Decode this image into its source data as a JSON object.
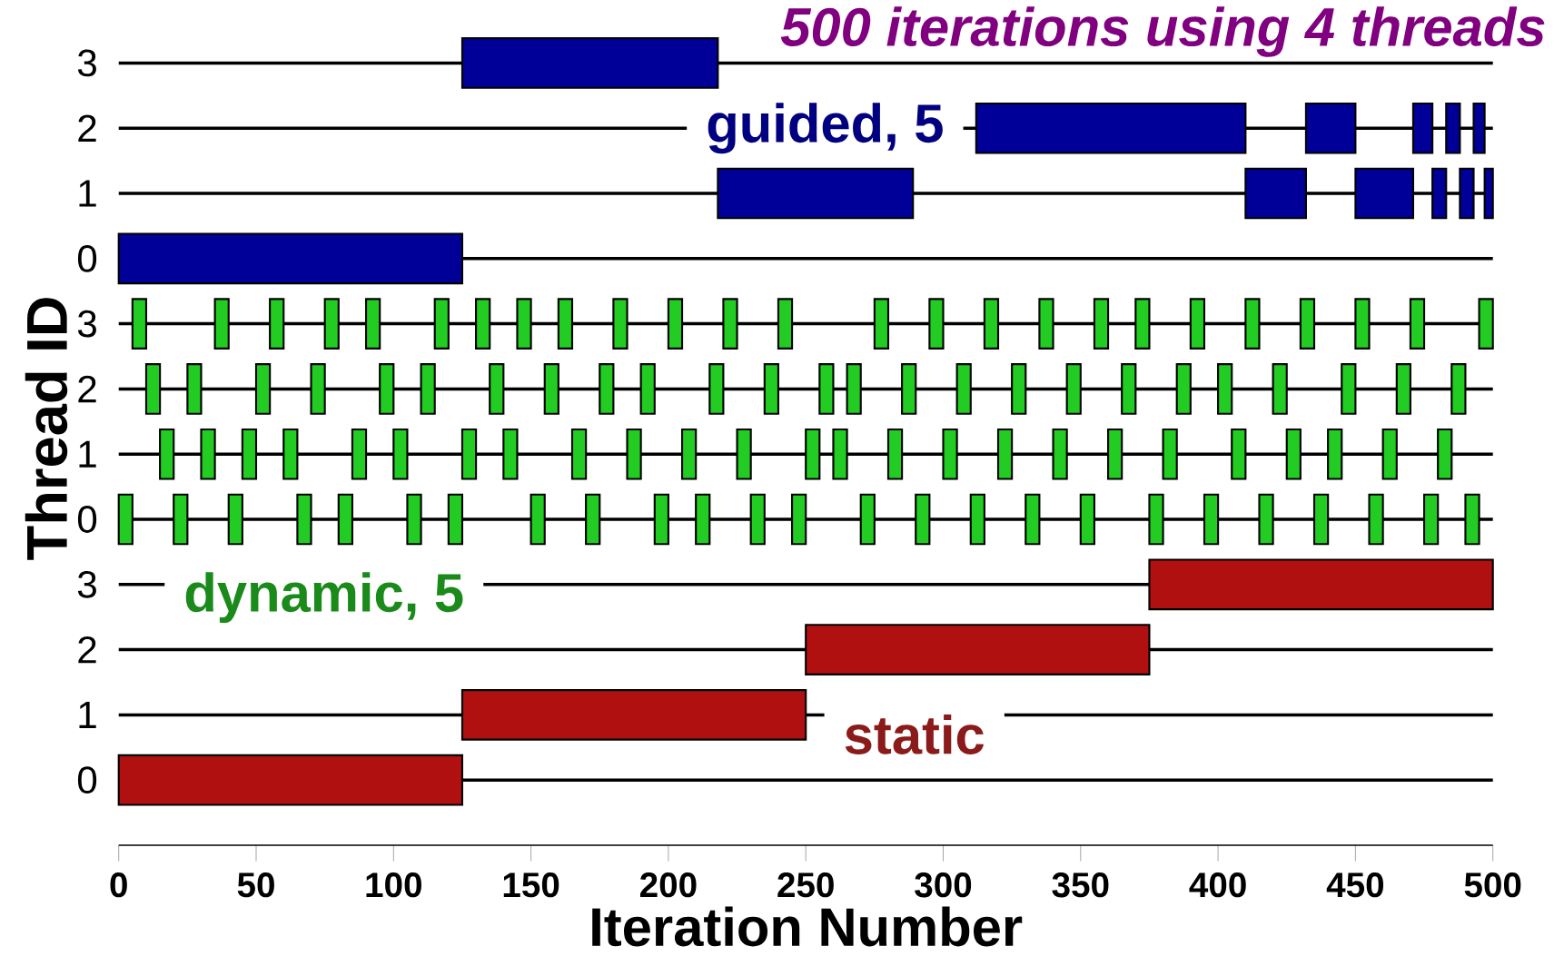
{
  "chart_data": {
    "type": "bar",
    "orientation": "horizontal",
    "title": "500 iterations using 4 threads",
    "xlabel": "Iteration Number",
    "ylabel": "Thread ID",
    "categories": [
      "3",
      "2",
      "1",
      "0",
      "3",
      "2",
      "1",
      "0",
      "3",
      "2",
      "1",
      "0"
    ],
    "xlim": [
      0,
      500
    ],
    "xticks": [
      0,
      50,
      100,
      150,
      200,
      250,
      300,
      350,
      400,
      450,
      500
    ],
    "grid": "y",
    "annotations": [
      "guided, 5",
      "dynamic, 5",
      "static"
    ],
    "series": [
      {
        "color": "#000099",
        "values": [
          93,
          98,
          71,
          125,
          null,
          null,
          null,
          null,
          null,
          null,
          null,
          null
        ],
        "base": [
          125,
          312,
          218,
          0,
          null,
          null,
          null,
          null,
          null,
          null,
          null,
          null
        ]
      },
      {
        "color": "#000099",
        "values": [
          null,
          18,
          22,
          null,
          null,
          null,
          null,
          null,
          null,
          null,
          null,
          null
        ],
        "base": [
          null,
          432,
          410,
          null,
          null,
          null,
          null,
          null,
          null,
          null,
          null,
          null
        ]
      },
      {
        "color": "#000099",
        "values": [
          null,
          7,
          21,
          null,
          null,
          null,
          null,
          null,
          null,
          null,
          null,
          null
        ],
        "base": [
          null,
          471,
          450,
          null,
          null,
          null,
          null,
          null,
          null,
          null,
          null,
          null
        ]
      },
      {
        "color": "#000099",
        "values": [
          null,
          5,
          5,
          null,
          null,
          null,
          null,
          null,
          null,
          null,
          null,
          null
        ],
        "base": [
          null,
          483,
          478,
          null,
          null,
          null,
          null,
          null,
          null,
          null,
          null,
          null
        ]
      },
      {
        "color": "#000099",
        "values": [
          null,
          4,
          5,
          null,
          null,
          null,
          null,
          null,
          null,
          null,
          null,
          null
        ],
        "base": [
          null,
          493,
          488,
          null,
          null,
          null,
          null,
          null,
          null,
          null,
          null,
          null
        ]
      },
      {
        "color": "#000099",
        "values": [
          null,
          null,
          3,
          null,
          null,
          null,
          null,
          null,
          null,
          null,
          null,
          null
        ],
        "base": [
          null,
          null,
          497,
          null,
          null,
          null,
          null,
          null,
          null,
          null,
          null,
          null
        ]
      },
      {
        "color": "#22cc22",
        "values": [
          null,
          null,
          null,
          null,
          5,
          5,
          5,
          5,
          null,
          null,
          null,
          null
        ],
        "base": [
          null,
          null,
          null,
          null,
          5,
          10,
          15,
          0,
          null,
          null,
          null,
          null
        ]
      },
      {
        "color": "#22cc22",
        "values": [
          null,
          null,
          null,
          null,
          5,
          5,
          5,
          5,
          null,
          null,
          null,
          null
        ],
        "base": [
          null,
          null,
          null,
          null,
          35,
          25,
          30,
          20,
          null,
          null,
          null,
          null
        ]
      },
      {
        "color": "#22cc22",
        "values": [
          null,
          null,
          null,
          null,
          5,
          5,
          5,
          5,
          null,
          null,
          null,
          null
        ],
        "base": [
          null,
          null,
          null,
          null,
          55,
          50,
          45,
          40,
          null,
          null,
          null,
          null
        ]
      },
      {
        "color": "#22cc22",
        "values": [
          null,
          null,
          null,
          null,
          5,
          5,
          5,
          5,
          null,
          null,
          null,
          null
        ],
        "base": [
          null,
          null,
          null,
          null,
          75,
          70,
          60,
          65,
          null,
          null,
          null,
          null
        ]
      },
      {
        "color": "#22cc22",
        "values": [
          null,
          null,
          null,
          null,
          5,
          5,
          5,
          5,
          null,
          null,
          null,
          null
        ],
        "base": [
          null,
          null,
          null,
          null,
          90,
          95,
          85,
          80,
          null,
          null,
          null,
          null
        ]
      },
      {
        "color": "#22cc22",
        "values": [
          null,
          null,
          null,
          null,
          5,
          5,
          5,
          5,
          null,
          null,
          null,
          null
        ],
        "base": [
          null,
          null,
          null,
          null,
          115,
          110,
          100,
          105,
          null,
          null,
          null,
          null
        ]
      },
      {
        "color": "#22cc22",
        "values": [
          null,
          null,
          null,
          null,
          5,
          5,
          5,
          5,
          null,
          null,
          null,
          null
        ],
        "base": [
          null,
          null,
          null,
          null,
          130,
          135,
          125,
          120,
          null,
          null,
          null,
          null
        ]
      },
      {
        "color": "#22cc22",
        "values": [
          null,
          null,
          null,
          null,
          5,
          5,
          5,
          5,
          null,
          null,
          null,
          null
        ],
        "base": [
          null,
          null,
          null,
          null,
          145,
          155,
          140,
          150,
          null,
          null,
          null,
          null
        ]
      },
      {
        "color": "#22cc22",
        "values": [
          null,
          null,
          null,
          null,
          5,
          5,
          5,
          5,
          null,
          null,
          null,
          null
        ],
        "base": [
          null,
          null,
          null,
          null,
          160,
          175,
          165,
          170,
          null,
          null,
          null,
          null
        ]
      },
      {
        "color": "#22cc22",
        "values": [
          null,
          null,
          null,
          null,
          5,
          5,
          5,
          5,
          null,
          null,
          null,
          null
        ],
        "base": [
          null,
          null,
          null,
          null,
          180,
          190,
          185,
          195,
          null,
          null,
          null,
          null
        ]
      },
      {
        "color": "#22cc22",
        "values": [
          null,
          null,
          null,
          null,
          5,
          5,
          5,
          5,
          null,
          null,
          null,
          null
        ],
        "base": [
          null,
          null,
          null,
          null,
          200,
          215,
          205,
          210,
          null,
          null,
          null,
          null
        ]
      },
      {
        "color": "#22cc22",
        "values": [
          null,
          null,
          null,
          null,
          5,
          5,
          5,
          5,
          null,
          null,
          null,
          null
        ],
        "base": [
          null,
          null,
          null,
          null,
          220,
          235,
          225,
          230,
          null,
          null,
          null,
          null
        ]
      },
      {
        "color": "#22cc22",
        "values": [
          null,
          null,
          null,
          null,
          5,
          5,
          5,
          5,
          null,
          null,
          null,
          null
        ],
        "base": [
          null,
          null,
          null,
          null,
          240,
          255,
          250,
          245,
          null,
          null,
          null,
          null
        ]
      },
      {
        "color": "#22cc22",
        "values": [
          null,
          null,
          null,
          null,
          5,
          5,
          5,
          5,
          null,
          null,
          null,
          null
        ],
        "base": [
          null,
          null,
          null,
          null,
          275,
          265,
          260,
          270,
          null,
          null,
          null,
          null
        ]
      },
      {
        "color": "#22cc22",
        "values": [
          null,
          null,
          null,
          null,
          5,
          5,
          5,
          5,
          null,
          null,
          null,
          null
        ],
        "base": [
          null,
          null,
          null,
          null,
          295,
          285,
          280,
          290,
          null,
          null,
          null,
          null
        ]
      },
      {
        "color": "#22cc22",
        "values": [
          null,
          null,
          null,
          null,
          5,
          5,
          5,
          5,
          null,
          null,
          null,
          null
        ],
        "base": [
          null,
          null,
          null,
          null,
          315,
          305,
          300,
          310,
          null,
          null,
          null,
          null
        ]
      },
      {
        "color": "#22cc22",
        "values": [
          null,
          null,
          null,
          null,
          5,
          5,
          5,
          5,
          null,
          null,
          null,
          null
        ],
        "base": [
          null,
          null,
          null,
          null,
          335,
          325,
          320,
          330,
          null,
          null,
          null,
          null
        ]
      },
      {
        "color": "#22cc22",
        "values": [
          null,
          null,
          null,
          null,
          5,
          5,
          5,
          5,
          null,
          null,
          null,
          null
        ],
        "base": [
          null,
          null,
          null,
          null,
          355,
          345,
          340,
          350,
          null,
          null,
          null,
          null
        ]
      },
      {
        "color": "#22cc22",
        "values": [
          null,
          null,
          null,
          null,
          5,
          5,
          5,
          5,
          null,
          null,
          null,
          null
        ],
        "base": [
          null,
          null,
          null,
          null,
          370,
          365,
          360,
          375,
          null,
          null,
          null,
          null
        ]
      },
      {
        "color": "#22cc22",
        "values": [
          null,
          null,
          null,
          null,
          5,
          5,
          5,
          5,
          null,
          null,
          null,
          null
        ],
        "base": [
          null,
          null,
          null,
          null,
          390,
          385,
          380,
          395,
          null,
          null,
          null,
          null
        ]
      },
      {
        "color": "#22cc22",
        "values": [
          null,
          null,
          null,
          null,
          5,
          5,
          5,
          5,
          null,
          null,
          null,
          null
        ],
        "base": [
          null,
          null,
          null,
          null,
          410,
          400,
          405,
          415,
          null,
          null,
          null,
          null
        ]
      },
      {
        "color": "#22cc22",
        "values": [
          null,
          null,
          null,
          null,
          5,
          5,
          5,
          5,
          null,
          null,
          null,
          null
        ],
        "base": [
          null,
          null,
          null,
          null,
          430,
          420,
          425,
          435,
          null,
          null,
          null,
          null
        ]
      },
      {
        "color": "#22cc22",
        "values": [
          null,
          null,
          null,
          null,
          5,
          5,
          5,
          5,
          null,
          null,
          null,
          null
        ],
        "base": [
          null,
          null,
          null,
          null,
          450,
          445,
          440,
          455,
          null,
          null,
          null,
          null
        ]
      },
      {
        "color": "#22cc22",
        "values": [
          null,
          null,
          null,
          null,
          5,
          5,
          5,
          5,
          null,
          null,
          null,
          null
        ],
        "base": [
          null,
          null,
          null,
          null,
          470,
          465,
          460,
          475,
          null,
          null,
          null,
          null
        ]
      },
      {
        "color": "#22cc22",
        "values": [
          null,
          null,
          null,
          null,
          5,
          5,
          5,
          5,
          null,
          null,
          null,
          null
        ],
        "base": [
          null,
          null,
          null,
          null,
          495,
          485,
          480,
          490,
          null,
          null,
          null,
          null
        ]
      },
      {
        "color": "#b01010",
        "values": [
          null,
          null,
          null,
          null,
          null,
          null,
          null,
          null,
          125,
          125,
          125,
          125
        ],
        "base": [
          null,
          null,
          null,
          null,
          null,
          null,
          null,
          null,
          375,
          250,
          125,
          0
        ]
      }
    ]
  }
}
